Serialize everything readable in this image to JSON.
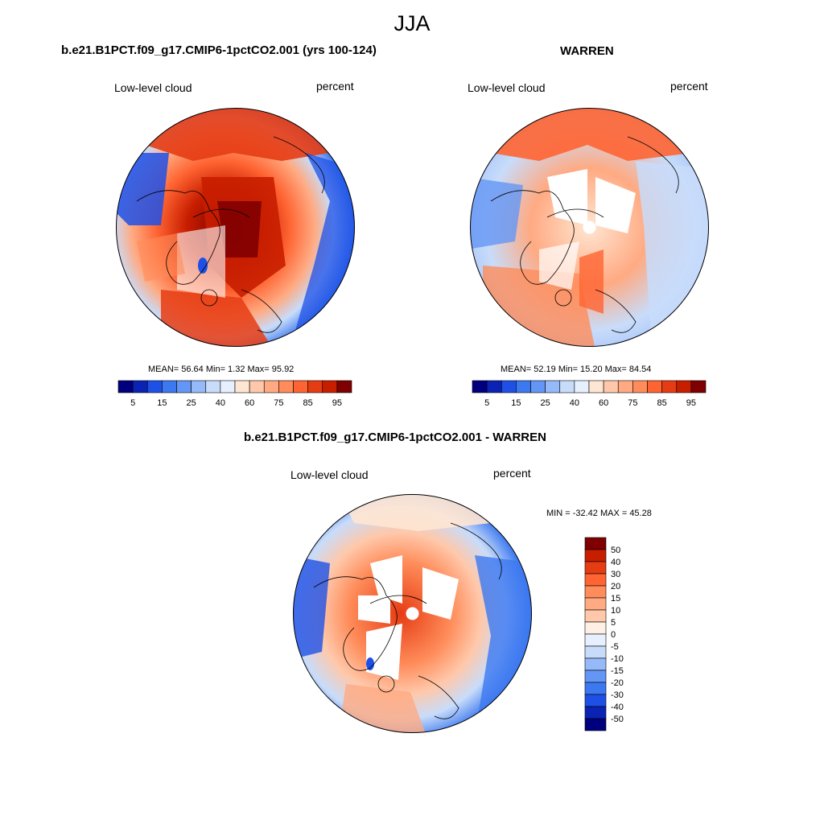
{
  "figure": {
    "title": "JJA",
    "panels": [
      {
        "title": "b.e21.B1PCT.f09_g17.CMIP6-1pctCO2.001 (yrs 100-124)",
        "left_label": "Low-level cloud",
        "right_label": "percent",
        "stats": "MEAN=  56.64  Min=   1.32  Max=  95.92",
        "colorbar_ticks": [
          "5",
          "15",
          "25",
          "40",
          "60",
          "75",
          "85",
          "95"
        ]
      },
      {
        "title": "WARREN",
        "left_label": "Low-level cloud",
        "right_label": "percent",
        "stats": "MEAN=  52.19  Min=  15.20  Max=  84.54",
        "colorbar_ticks": [
          "5",
          "15",
          "25",
          "40",
          "60",
          "75",
          "85",
          "95"
        ]
      },
      {
        "title": "b.e21.B1PCT.f09_g17.CMIP6-1pctCO2.001 - WARREN",
        "left_label": "Low-level cloud",
        "right_label": "percent",
        "stats": "MIN = -32.42 MAX =  45.28",
        "colorbar_ticks": [
          "50",
          "40",
          "30",
          "20",
          "15",
          "10",
          "5",
          "0",
          "-5",
          "-10",
          "-15",
          "-20",
          "-30",
          "-40",
          "-50"
        ]
      }
    ]
  },
  "colors": {
    "abs_scale": [
      "#00007f",
      "#0a23b4",
      "#1e50e6",
      "#3c78f0",
      "#6496f5",
      "#96b9fa",
      "#c8dcfa",
      "#e6f0ff",
      "#ffe6d2",
      "#ffc8aa",
      "#ffaa82",
      "#ff8c5a",
      "#ff6432",
      "#e63c14",
      "#c81e00",
      "#7f0000"
    ],
    "diff_scale": [
      "#7f0000",
      "#c81e00",
      "#e63c14",
      "#ff6432",
      "#ff8c5a",
      "#ffaa82",
      "#ffc8aa",
      "#fff0e6",
      "#e6f0ff",
      "#c8dcfa",
      "#96b9fa",
      "#6496f5",
      "#3c78f0",
      "#1e50e6",
      "#0a23b4",
      "#00007f"
    ]
  }
}
